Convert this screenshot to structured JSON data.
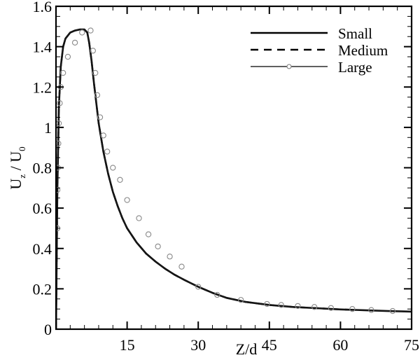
{
  "chart_data": {
    "type": "line",
    "title": "",
    "xlabel": "Z/d",
    "ylabel": "U_z / U_0",
    "xlim": [
      0,
      75
    ],
    "ylim": [
      0,
      1.6
    ],
    "x_ticks": [
      15,
      30,
      45,
      60,
      75
    ],
    "x_tick_labels": [
      "15",
      "30",
      "45",
      "60",
      "75"
    ],
    "y_ticks": [
      0,
      0.2,
      0.4,
      0.6,
      0.8,
      1,
      1.2,
      1.4,
      1.6
    ],
    "y_tick_labels": [
      "0",
      "0.2",
      "0.4",
      "0.6",
      "0.8",
      "1",
      "1.2",
      "1.4",
      "1.6"
    ],
    "grid": false,
    "legend_position": "upper right",
    "series": [
      {
        "name": "Small",
        "style": "solid-thick",
        "x": [
          0,
          0.3,
          0.6,
          1.0,
          1.5,
          2.0,
          3.0,
          4.0,
          5.0,
          6.0,
          6.6,
          7.0,
          7.5,
          8.0,
          9.0,
          10.0,
          11.0,
          12.0,
          13.0,
          14.0,
          15.0,
          17.0,
          19.0,
          21.0,
          23.0,
          25.0,
          27.0,
          30.0,
          33.0,
          36.0,
          40.0,
          45.0,
          50.0,
          55.0,
          60.0,
          65.0,
          70.0,
          75.0
        ],
        "y": [
          0.0,
          0.7,
          1.1,
          1.3,
          1.4,
          1.44,
          1.47,
          1.48,
          1.485,
          1.485,
          1.47,
          1.42,
          1.33,
          1.22,
          1.02,
          0.88,
          0.77,
          0.68,
          0.61,
          0.55,
          0.5,
          0.43,
          0.375,
          0.335,
          0.3,
          0.27,
          0.245,
          0.21,
          0.18,
          0.155,
          0.135,
          0.12,
          0.11,
          0.104,
          0.098,
          0.094,
          0.09,
          0.087
        ]
      },
      {
        "name": "Medium",
        "style": "dashed-thick",
        "x": [
          0,
          0.3,
          0.6,
          1.0,
          1.5,
          2.0,
          3.0,
          4.0,
          5.0,
          6.0,
          6.6,
          7.0,
          7.5,
          8.0,
          9.0,
          10.0,
          11.0,
          12.0,
          13.0,
          14.0,
          15.0,
          17.0,
          19.0,
          21.0,
          23.0,
          25.0,
          27.0,
          30.0,
          33.0,
          36.0,
          40.0,
          45.0,
          50.0,
          55.0,
          60.0,
          62.5
        ],
        "y": [
          0.0,
          0.7,
          1.1,
          1.3,
          1.4,
          1.44,
          1.47,
          1.48,
          1.485,
          1.485,
          1.47,
          1.42,
          1.33,
          1.22,
          1.02,
          0.88,
          0.77,
          0.68,
          0.61,
          0.55,
          0.5,
          0.43,
          0.375,
          0.335,
          0.3,
          0.27,
          0.245,
          0.21,
          0.18,
          0.155,
          0.135,
          0.12,
          0.11,
          0.104,
          0.098,
          0.096
        ]
      },
      {
        "name": "Large",
        "style": "solid-thin-circle-markers",
        "x": [
          0.3,
          0.3,
          0.4,
          0.5,
          0.6,
          0.8,
          1.0,
          1.5,
          2.5,
          4.0,
          5.5,
          7.3,
          7.8,
          8.3,
          8.7,
          9.3,
          10.0,
          10.8,
          12.0,
          13.5,
          15.0,
          17.5,
          19.5,
          21.5,
          24.0,
          26.5,
          30.0,
          34.0,
          39.0,
          44.5,
          47.5,
          51.0,
          54.5,
          58.0,
          62.5,
          66.5,
          71.0
        ],
        "y": [
          0.5,
          0.69,
          0.8,
          0.92,
          1.02,
          1.12,
          1.2,
          1.27,
          1.35,
          1.42,
          1.47,
          1.48,
          1.38,
          1.27,
          1.16,
          1.05,
          0.96,
          0.88,
          0.8,
          0.74,
          0.64,
          0.55,
          0.47,
          0.41,
          0.36,
          0.31,
          0.21,
          0.17,
          0.145,
          0.125,
          0.12,
          0.115,
          0.11,
          0.105,
          0.1,
          0.095,
          0.09
        ]
      }
    ]
  },
  "legend": {
    "items": [
      {
        "label": "Small"
      },
      {
        "label": "Medium"
      },
      {
        "label": "Large"
      }
    ]
  }
}
